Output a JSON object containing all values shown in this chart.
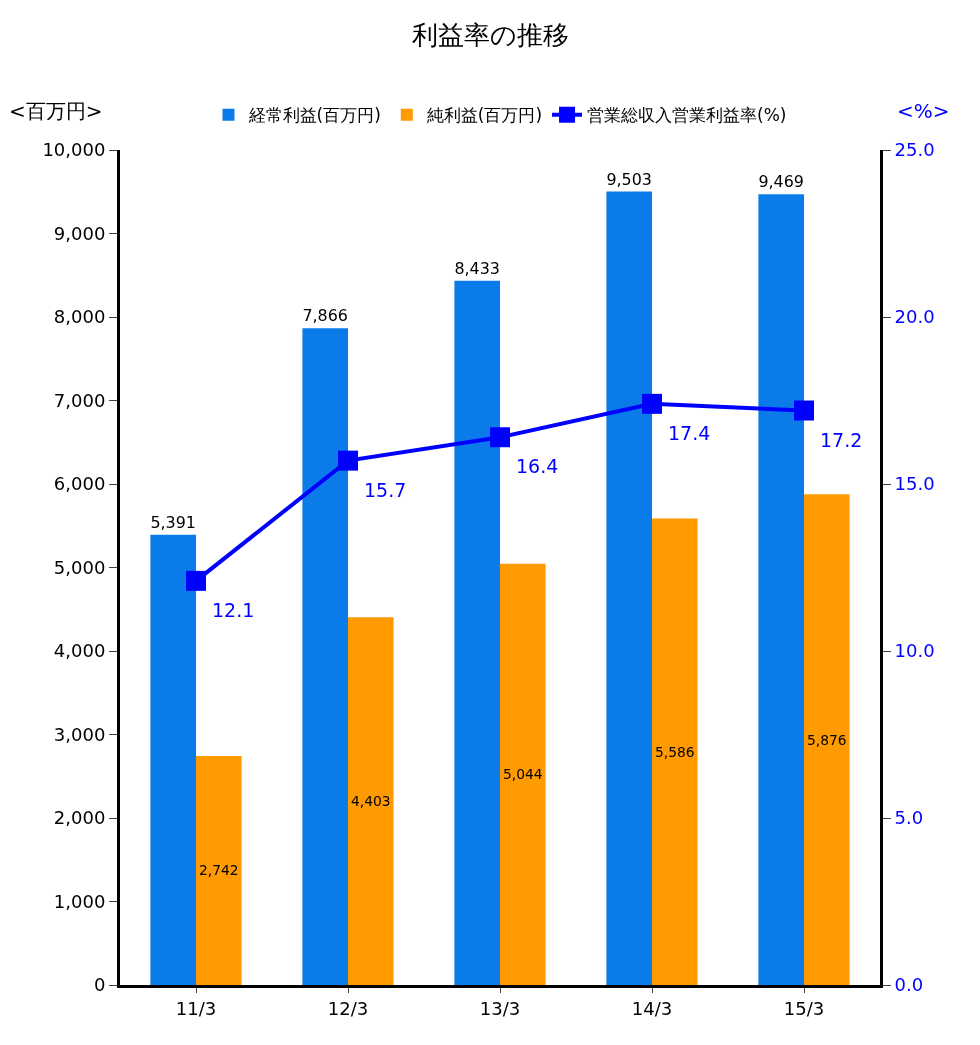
{
  "chart_data": {
    "type": "bar",
    "title": "利益率の推移",
    "ylabel": "<百万円>",
    "y2label": "<%>",
    "categories": [
      "11/3",
      "12/3",
      "13/3",
      "14/3",
      "15/3"
    ],
    "series": [
      {
        "name": "経常利益(百万円)",
        "color": "#0a7be8",
        "values": [
          5391,
          7866,
          8433,
          9503,
          9469
        ],
        "value_labels": [
          "5,391",
          "7,866",
          "8,433",
          "9,503",
          "9,469"
        ]
      },
      {
        "name": "純利益(百万円)",
        "color": "#ff9a00",
        "values": [
          2742,
          4403,
          5044,
          5586,
          5876
        ],
        "value_labels": [
          "2,742",
          "4,403",
          "5,044",
          "5,586",
          "5,876"
        ]
      },
      {
        "name": "営業総収入営業利益率(%)",
        "type": "line",
        "axis": "y2",
        "color": "#0000ff",
        "marker": "square",
        "values": [
          12.1,
          15.7,
          16.4,
          17.4,
          17.2
        ],
        "value_labels": [
          "12.1",
          "15.7",
          "16.4",
          "17.4",
          "17.2"
        ]
      }
    ],
    "ylim": [
      0,
      10000
    ],
    "yticks": [
      {
        "value": 0,
        "label": "0"
      },
      {
        "value": 1000,
        "label": "1,000"
      },
      {
        "value": 2000,
        "label": "2,000"
      },
      {
        "value": 3000,
        "label": "3,000"
      },
      {
        "value": 4000,
        "label": "4,000"
      },
      {
        "value": 5000,
        "label": "5,000"
      },
      {
        "value": 6000,
        "label": "6,000"
      },
      {
        "value": 7000,
        "label": "7,000"
      },
      {
        "value": 8000,
        "label": "8,000"
      },
      {
        "value": 9000,
        "label": "9,000"
      },
      {
        "value": 10000,
        "label": "10,000"
      }
    ],
    "y2lim": [
      0,
      25
    ],
    "y2ticks": [
      {
        "value": 0,
        "label": "0.0"
      },
      {
        "value": 5,
        "label": "5.0"
      },
      {
        "value": 10,
        "label": "10.0"
      },
      {
        "value": 15,
        "label": "15.0"
      },
      {
        "value": 20,
        "label": "20.0"
      },
      {
        "value": 25,
        "label": "25.0"
      }
    ],
    "legend": "top"
  }
}
